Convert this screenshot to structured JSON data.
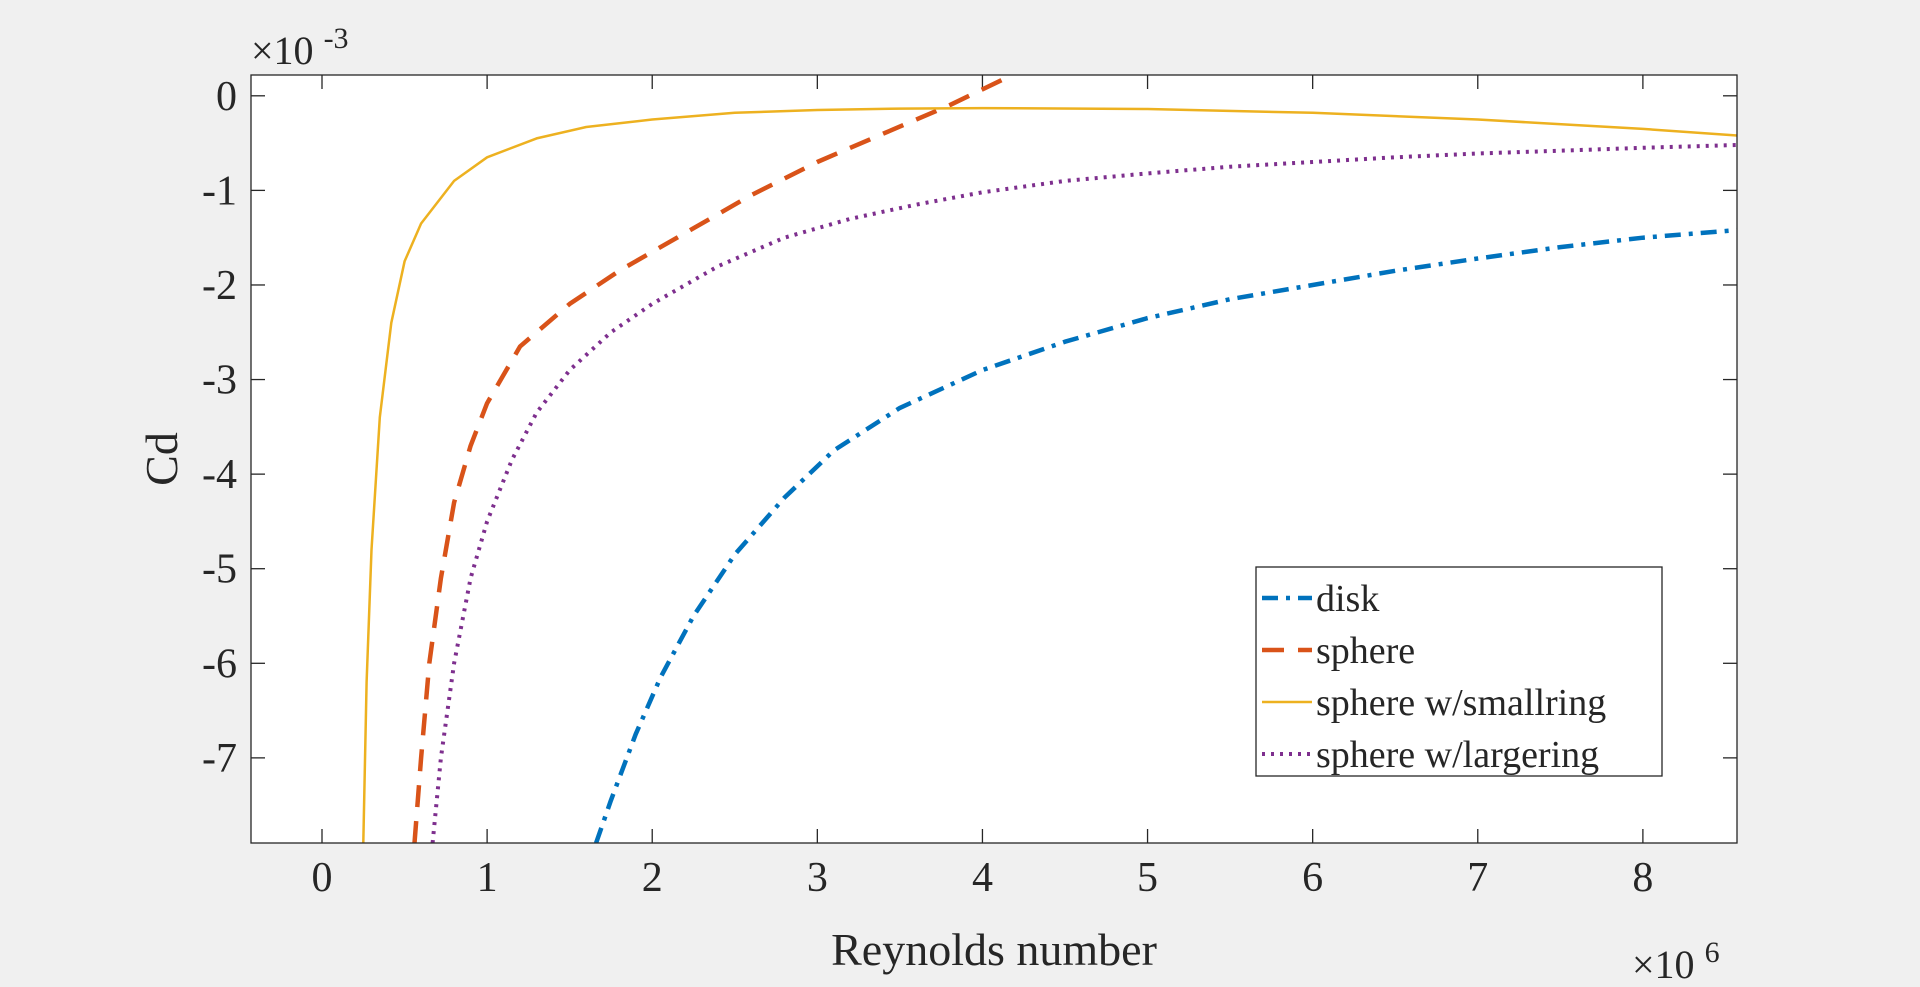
{
  "chart_data": {
    "type": "line",
    "xlabel": "Reynolds number",
    "ylabel": "Cd",
    "x_multiplier": {
      "base": "×10",
      "exp": "6"
    },
    "y_multiplier": {
      "base": "×10",
      "exp": "-3"
    },
    "xlim": [
      -0.43,
      8.57
    ],
    "ylim": [
      -7.9,
      0.22
    ],
    "x_ticks": [
      0,
      1,
      2,
      3,
      4,
      5,
      6,
      7,
      8
    ],
    "y_ticks": [
      0,
      -1,
      -2,
      -3,
      -4,
      -5,
      -6,
      -7
    ],
    "legend_position": "bottom-right",
    "grid": false,
    "series": [
      {
        "name": "disk",
        "color": "#0072BD",
        "style": "dashdot",
        "x": [
          1.66,
          1.75,
          1.9,
          2.05,
          2.25,
          2.5,
          2.8,
          3.1,
          3.5,
          4.0,
          4.5,
          5.0,
          5.5,
          6.0,
          6.5,
          7.0,
          7.5,
          8.0,
          8.57
        ],
        "y": [
          -7.9,
          -7.45,
          -6.75,
          -6.15,
          -5.5,
          -4.85,
          -4.25,
          -3.75,
          -3.3,
          -2.9,
          -2.6,
          -2.35,
          -2.15,
          -2.0,
          -1.85,
          -1.72,
          -1.6,
          -1.5,
          -1.42
        ]
      },
      {
        "name": "sphere",
        "color": "#D95319",
        "style": "dashed",
        "x": [
          0.56,
          0.6,
          0.65,
          0.72,
          0.8,
          0.9,
          1.0,
          1.2,
          1.5,
          1.8,
          2.2,
          2.6,
          3.0,
          3.4,
          3.8,
          4.18
        ],
        "y": [
          -7.9,
          -7.0,
          -6.0,
          -5.1,
          -4.3,
          -3.7,
          -3.25,
          -2.65,
          -2.2,
          -1.85,
          -1.45,
          -1.05,
          -0.7,
          -0.4,
          -0.1,
          0.22
        ]
      },
      {
        "name": "sphere w/smallring",
        "color": "#EDB120",
        "style": "solid",
        "x": [
          0.25,
          0.27,
          0.3,
          0.35,
          0.42,
          0.5,
          0.6,
          0.8,
          1.0,
          1.3,
          1.6,
          2.0,
          2.5,
          3.0,
          3.5,
          4.0,
          5.0,
          6.0,
          7.0,
          8.0,
          8.57
        ],
        "y": [
          -7.9,
          -6.2,
          -4.8,
          -3.4,
          -2.4,
          -1.75,
          -1.35,
          -0.9,
          -0.65,
          -0.45,
          -0.33,
          -0.25,
          -0.18,
          -0.15,
          -0.135,
          -0.13,
          -0.14,
          -0.18,
          -0.25,
          -0.35,
          -0.42
        ]
      },
      {
        "name": "sphere w/largering",
        "color": "#7E2F8E",
        "style": "dotted",
        "x": [
          0.67,
          0.72,
          0.8,
          0.9,
          1.0,
          1.15,
          1.3,
          1.5,
          1.75,
          2.0,
          2.4,
          2.8,
          3.2,
          3.6,
          4.0,
          4.5,
          5.0,
          5.5,
          6.0,
          6.5,
          7.0,
          7.5,
          8.0,
          8.57
        ],
        "y": [
          -7.9,
          -7.0,
          -6.0,
          -5.1,
          -4.5,
          -3.85,
          -3.35,
          -2.9,
          -2.5,
          -2.2,
          -1.8,
          -1.5,
          -1.3,
          -1.15,
          -1.02,
          -0.9,
          -0.82,
          -0.75,
          -0.7,
          -0.65,
          -0.61,
          -0.58,
          -0.55,
          -0.52
        ]
      }
    ]
  }
}
